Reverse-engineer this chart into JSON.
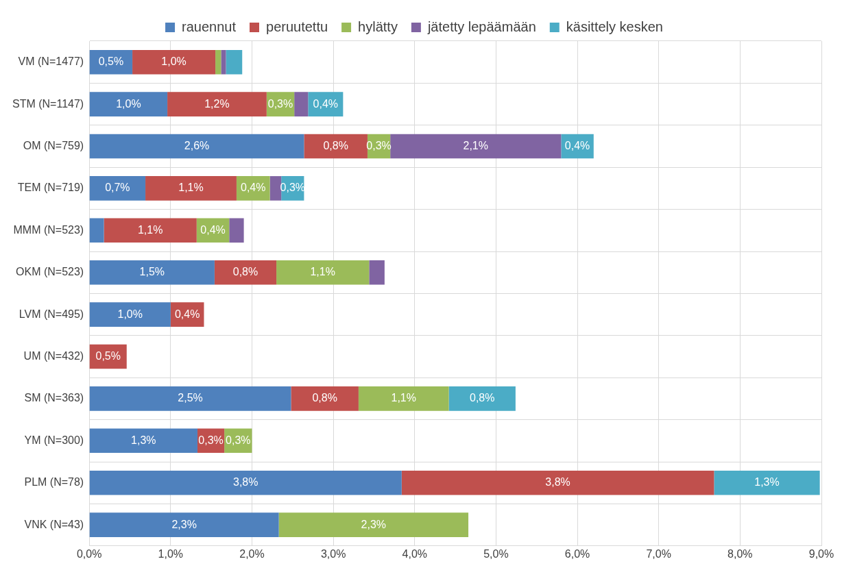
{
  "chart_data": {
    "type": "bar",
    "orientation": "horizontal",
    "stacked": true,
    "categories": [
      "VM (N=1477)",
      "STM (N=1147)",
      "OM (N=759)",
      "TEM (N=719)",
      "MMM (N=523)",
      "OKM (N=523)",
      "LVM (N=495)",
      "UM (N=432)",
      "SM (N=363)",
      "YM (N=300)",
      "PLM (N=78)",
      "VNK (N=43)"
    ],
    "series": [
      {
        "name": "rauennut",
        "color": "#4f81bd",
        "values": [
          0.53,
          0.96,
          2.64,
          0.69,
          0.18,
          1.54,
          1.0,
          null,
          2.48,
          1.33,
          3.84,
          2.33
        ],
        "value_labels": [
          "0,5%",
          "1,0%",
          "2,6%",
          "0,7%",
          null,
          "1,5%",
          "1,0%",
          null,
          "2,5%",
          "1,3%",
          "3,8%",
          "2,3%"
        ]
      },
      {
        "name": "peruutettu",
        "color": "#c0504d",
        "values": [
          1.02,
          1.22,
          0.78,
          1.12,
          1.14,
          0.76,
          0.41,
          0.46,
          0.83,
          0.33,
          3.84,
          null
        ],
        "value_labels": [
          "1,0%",
          "1,2%",
          "0,8%",
          "1,1%",
          "1,1%",
          "0,8%",
          "0,4%",
          "0,5%",
          "0,8%",
          "0,3%",
          "3,8%",
          null
        ]
      },
      {
        "name": "hylätty",
        "color": "#9bbb59",
        "values": [
          0.07,
          0.34,
          0.28,
          0.41,
          0.4,
          1.14,
          null,
          null,
          1.11,
          0.34,
          null,
          2.33
        ],
        "value_labels": [
          null,
          "0,3%",
          "0,3%",
          "0,4%",
          "0,4%",
          "1,1%",
          null,
          null,
          "1,1%",
          "0,3%",
          null,
          "2,3%"
        ]
      },
      {
        "name": "jätetty lepäämään",
        "color": "#8064a2",
        "values": [
          0.06,
          0.17,
          2.1,
          0.14,
          0.18,
          0.19,
          null,
          null,
          null,
          null,
          null,
          null
        ],
        "value_labels": [
          null,
          null,
          "2,1%",
          null,
          null,
          null,
          null,
          null,
          null,
          null,
          null,
          null
        ]
      },
      {
        "name": "käsittely kesken",
        "color": "#4bacc6",
        "values": [
          0.2,
          0.43,
          0.4,
          0.28,
          null,
          null,
          null,
          null,
          0.82,
          null,
          1.3,
          null
        ],
        "value_labels": [
          null,
          "0,4%",
          "0,4%",
          "0,3%",
          null,
          null,
          null,
          null,
          "0,8%",
          null,
          "1,3%",
          null
        ]
      }
    ],
    "xlim": [
      0,
      9
    ],
    "xticks": [
      {
        "value": 0,
        "label": "0,0%"
      },
      {
        "value": 1,
        "label": "1,0%"
      },
      {
        "value": 2,
        "label": "2,0%"
      },
      {
        "value": 3,
        "label": "3,0%"
      },
      {
        "value": 4,
        "label": "4,0%"
      },
      {
        "value": 5,
        "label": "5,0%"
      },
      {
        "value": 6,
        "label": "6,0%"
      },
      {
        "value": 7,
        "label": "7,0%"
      },
      {
        "value": 8,
        "label": "8,0%"
      },
      {
        "value": 9,
        "label": "9,0%"
      }
    ],
    "grid": true,
    "legend": "top"
  }
}
